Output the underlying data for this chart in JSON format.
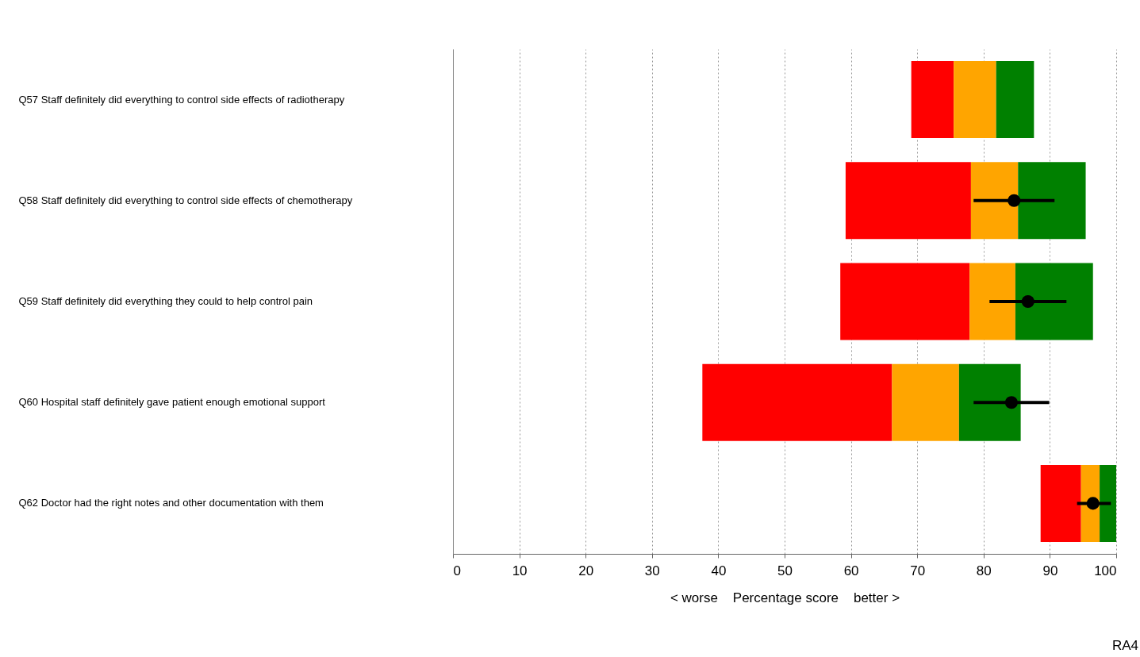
{
  "chart_data": {
    "type": "bar",
    "orientation": "horizontal",
    "categories": [
      "Q57 Staff definitely did everything to control side effects of radiotherapy",
      "Q58 Staff definitely did everything to control side effects of chemotherapy",
      "Q59 Staff definitely did everything they could to help control pain",
      "Q60 Hospital staff definitely gave patient enough emotional support",
      "Q62 Doctor had the right notes and other documentation with them"
    ],
    "series": [
      {
        "color": "#ff0000",
        "base": [
          69.1,
          59.2,
          58.4,
          37.6,
          88.6
        ],
        "values": [
          6.4,
          18.9,
          19.5,
          28.6,
          6.1
        ]
      },
      {
        "color": "#ffa500",
        "base": [
          75.5,
          78.1,
          77.9,
          66.2,
          94.7
        ],
        "values": [
          6.4,
          7.1,
          6.9,
          10.1,
          2.8
        ]
      },
      {
        "color": "#008000",
        "base": [
          81.9,
          85.2,
          84.8,
          76.3,
          97.5
        ],
        "values": [
          5.7,
          10.2,
          11.7,
          9.3,
          2.5
        ]
      },
      {
        "type": "scatter",
        "color": "#000000",
        "values": [
          null,
          84.6,
          86.7,
          84.2,
          96.5
        ],
        "errors": [
          null,
          [
            78.5,
            90.7
          ],
          [
            80.9,
            92.5
          ],
          [
            78.5,
            89.9
          ],
          [
            94.1,
            99.2
          ]
        ]
      }
    ],
    "xlabel": "< worse    Percentage score    better >",
    "xlim": [
      0,
      100
    ],
    "xticks": [
      0,
      10,
      20,
      30,
      40,
      50,
      60,
      70,
      80,
      90,
      100
    ],
    "grid": "x",
    "marker": "circle",
    "annotations": [
      "RA4"
    ]
  }
}
